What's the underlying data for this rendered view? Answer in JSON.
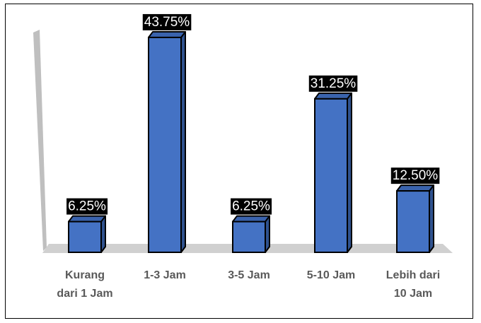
{
  "chart_data": {
    "type": "bar",
    "style": "3d-column",
    "categories": [
      "Kurang dari 1 Jam",
      "1-3 Jam",
      "3-5 Jam",
      "5-10 Jam",
      "Lebih dari 10 Jam"
    ],
    "category_lines": [
      [
        "Kurang",
        "dari 1 Jam"
      ],
      [
        "1-3 Jam"
      ],
      [
        "3-5 Jam"
      ],
      [
        "5-10 Jam"
      ],
      [
        "Lebih dari",
        "10 Jam"
      ]
    ],
    "values": [
      6.25,
      43.75,
      6.25,
      31.25,
      12.5
    ],
    "data_labels": [
      "6.25%",
      "43.75%",
      "6.25%",
      "31.25%",
      "12.50%"
    ],
    "title": "",
    "xlabel": "",
    "ylabel": "",
    "ylim": [
      0,
      50
    ],
    "grid": false,
    "legend": "none",
    "colors": {
      "bar_front": "#4472c4",
      "bar_side": "#2f528f",
      "bar_top": "#3a63ad",
      "wall": "#bfbfbf",
      "floor": "#d0d0d0",
      "label_bg": "#000000",
      "label_text": "#ffffff",
      "category_text": "#595959"
    }
  }
}
